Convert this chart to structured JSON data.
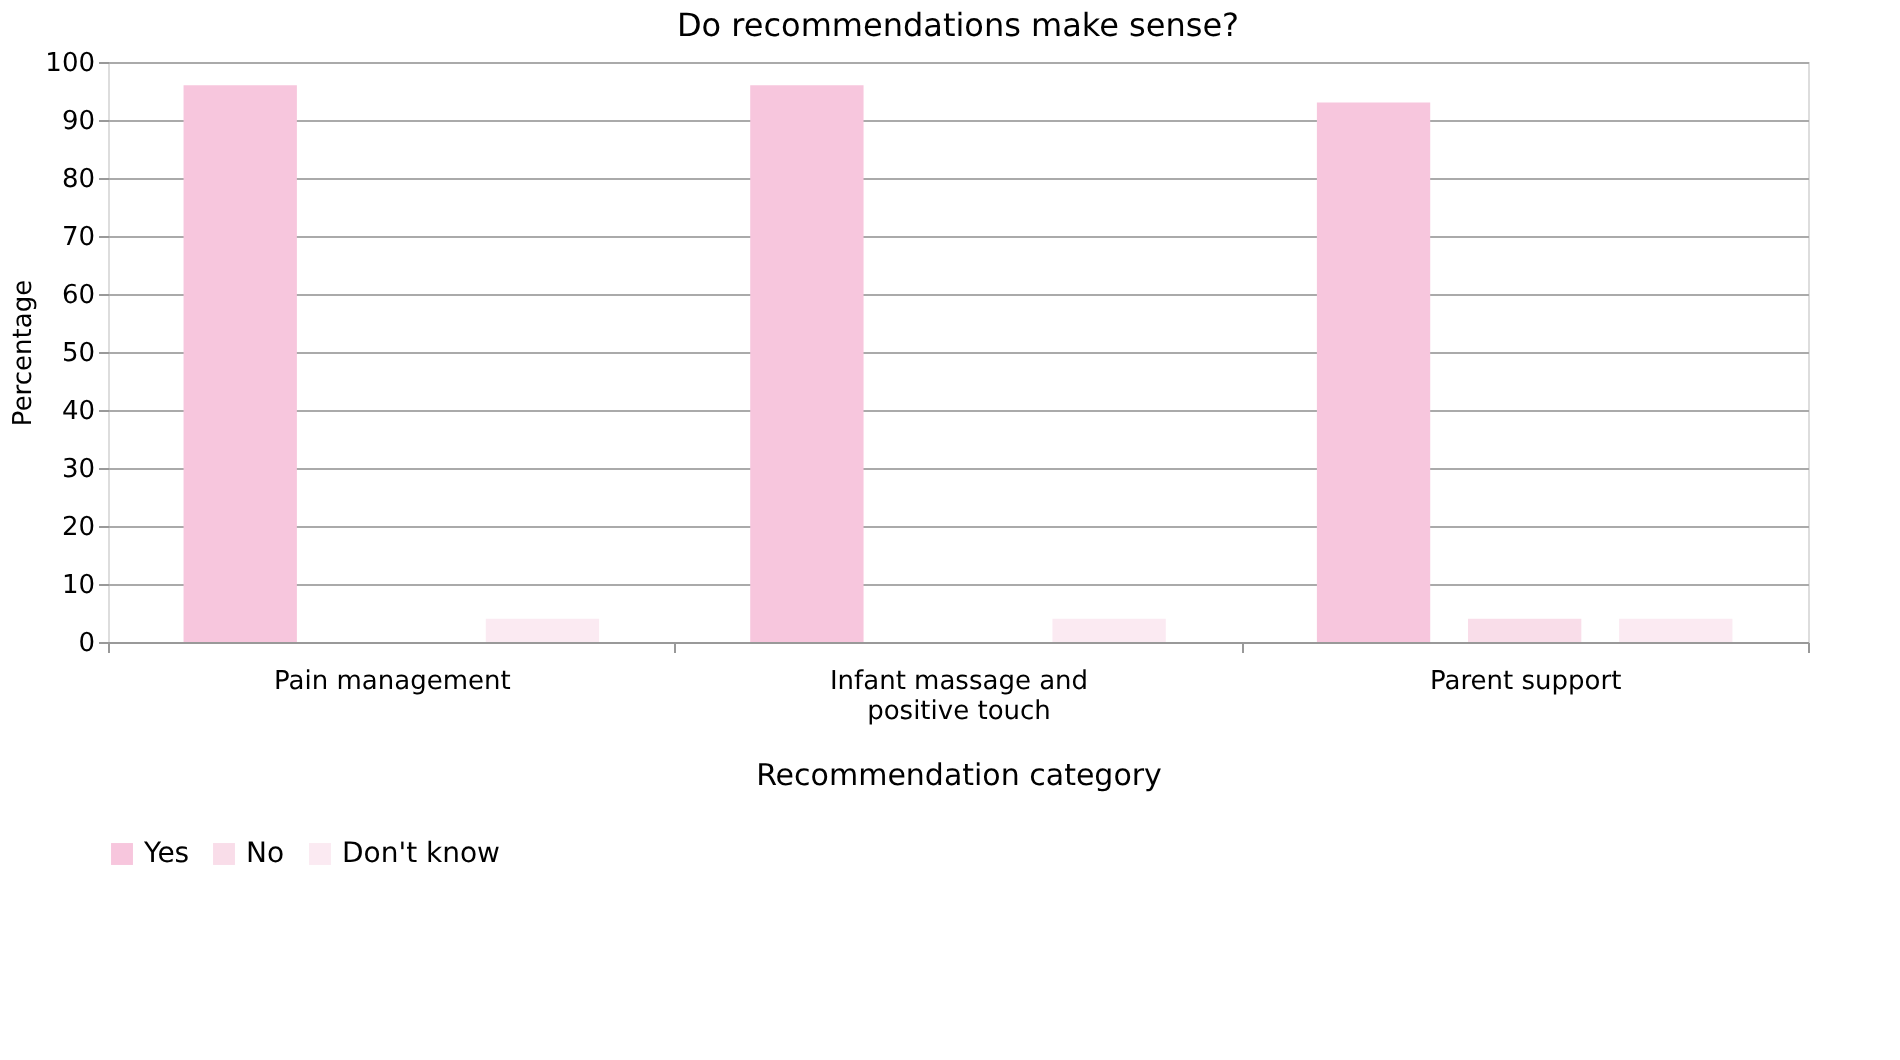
{
  "chart_data": {
    "type": "bar",
    "title": "Do recommendations make sense?",
    "xlabel": "Recommendation category",
    "ylabel": "Percentage",
    "categories": [
      "Pain management",
      "Infant massage and positive touch",
      "Parent support"
    ],
    "series": [
      {
        "name": "Yes",
        "color": "#f7c6dd",
        "values": [
          96,
          96,
          93
        ]
      },
      {
        "name": "No",
        "color": "#f9dde9",
        "values": [
          0,
          0,
          4
        ]
      },
      {
        "name": "Don't know",
        "color": "#fbeaf2",
        "values": [
          4,
          4,
          4
        ]
      }
    ],
    "ylim": [
      0,
      100
    ],
    "yticks": [
      0,
      10,
      20,
      30,
      40,
      50,
      60,
      70,
      80,
      90,
      100
    ],
    "grid": "y",
    "legend": "bottom"
  }
}
